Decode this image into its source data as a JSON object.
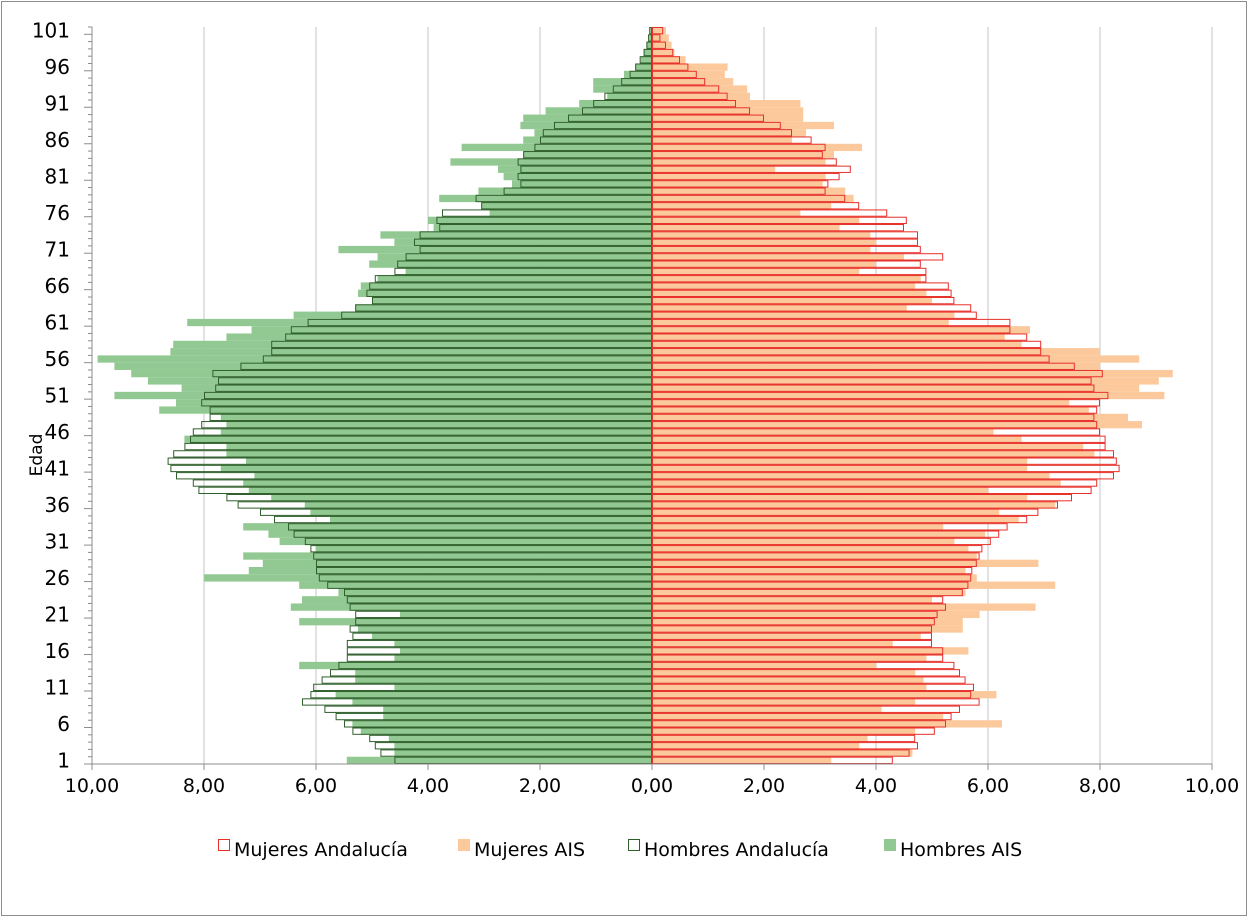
{
  "chart_data": {
    "type": "bar",
    "orientation": "horizontal-population-pyramid",
    "ylabel": "Edad",
    "xlabel": "",
    "xlim": [
      -10,
      10
    ],
    "x_tick_labels": [
      "10,00",
      "8,00",
      "6,00",
      "4,00",
      "2,00",
      "0,00",
      "2,00",
      "4,00",
      "6,00",
      "8,00",
      "10,00"
    ],
    "y_tick_labels": [
      "1",
      "6",
      "11",
      "16",
      "21",
      "26",
      "31",
      "36",
      "41",
      "46",
      "51",
      "56",
      "61",
      "66",
      "71",
      "76",
      "81",
      "86",
      "91",
      "96",
      "101"
    ],
    "ages": [
      1,
      2,
      3,
      4,
      5,
      6,
      7,
      8,
      9,
      10,
      11,
      12,
      13,
      14,
      15,
      16,
      17,
      18,
      19,
      20,
      21,
      22,
      23,
      24,
      25,
      26,
      27,
      28,
      29,
      30,
      31,
      32,
      33,
      34,
      35,
      36,
      37,
      38,
      39,
      40,
      41,
      42,
      43,
      44,
      45,
      46,
      47,
      48,
      49,
      50,
      51,
      52,
      53,
      54,
      55,
      56,
      57,
      58,
      59,
      60,
      61,
      62,
      63,
      64,
      65,
      66,
      67,
      68,
      69,
      70,
      71,
      72,
      73,
      74,
      75,
      76,
      77,
      78,
      79,
      80,
      81,
      82,
      83,
      84,
      85,
      86,
      87,
      88,
      89,
      90,
      91,
      92,
      93,
      94,
      95,
      96,
      97,
      98,
      99,
      100,
      101
    ],
    "legend_position": "bottom",
    "grid": "vertical",
    "series": [
      {
        "name": "Mujeres Andalucía",
        "style": "outline",
        "color": "#e8302a",
        "side": "right",
        "values": [
          4.3,
          4.6,
          4.75,
          4.7,
          5.05,
          5.25,
          5.35,
          5.5,
          5.85,
          5.7,
          5.75,
          5.6,
          5.5,
          5.4,
          5.2,
          5.2,
          5.0,
          5.0,
          5.0,
          5.05,
          5.1,
          5.25,
          5.2,
          5.55,
          5.65,
          5.7,
          5.72,
          5.8,
          5.85,
          5.9,
          6.05,
          6.2,
          6.35,
          6.7,
          6.9,
          7.25,
          7.5,
          7.85,
          7.95,
          8.25,
          8.35,
          8.3,
          8.25,
          8.1,
          8.1,
          8.0,
          7.95,
          7.9,
          7.95,
          8.0,
          8.15,
          7.9,
          7.85,
          8.05,
          7.55,
          7.1,
          6.95,
          6.95,
          6.7,
          6.4,
          6.4,
          5.8,
          5.7,
          5.4,
          5.35,
          5.3,
          4.9,
          4.9,
          4.8,
          5.2,
          4.8,
          4.75,
          4.75,
          4.5,
          4.55,
          4.2,
          3.7,
          3.45,
          3.1,
          3.15,
          3.35,
          3.55,
          3.3,
          3.05,
          3.1,
          2.85,
          2.5,
          2.3,
          2.0,
          1.75,
          1.5,
          1.35,
          1.2,
          0.95,
          0.8,
          0.65,
          0.5,
          0.38,
          0.25,
          0.15,
          0.2
        ]
      },
      {
        "name": "Mujeres AIS",
        "style": "filled",
        "color": "#fcc99c",
        "side": "right",
        "values": [
          3.2,
          4.65,
          3.7,
          3.85,
          4.7,
          6.25,
          5.2,
          4.1,
          4.7,
          6.15,
          4.9,
          4.85,
          4.7,
          4.0,
          4.9,
          5.65,
          4.3,
          4.8,
          5.55,
          5.55,
          5.85,
          6.85,
          5.0,
          5.6,
          7.2,
          5.8,
          5.6,
          6.9,
          5.8,
          5.65,
          5.4,
          5.95,
          5.2,
          6.55,
          6.2,
          7.2,
          6.7,
          6.0,
          7.3,
          7.1,
          6.7,
          6.7,
          7.9,
          7.7,
          6.6,
          6.1,
          8.75,
          8.5,
          7.8,
          7.45,
          9.15,
          8.7,
          9.05,
          9.3,
          8.0,
          8.7,
          8.0,
          6.6,
          6.3,
          6.75,
          5.3,
          5.4,
          4.55,
          5.0,
          4.9,
          4.7,
          4.8,
          3.7,
          4.0,
          4.5,
          3.9,
          4.0,
          3.9,
          3.35,
          3.7,
          2.65,
          3.2,
          3.6,
          3.45,
          3.05,
          3.1,
          2.2,
          3.1,
          3.25,
          3.75,
          2.5,
          2.75,
          3.25,
          2.7,
          2.7,
          2.65,
          1.75,
          1.7,
          1.45,
          1.3,
          1.35,
          0.6,
          0.4,
          0.35,
          0.3,
          0.25
        ]
      },
      {
        "name": "Hombres Andalucía",
        "style": "outline",
        "color": "#2f5f2b",
        "side": "left",
        "values": [
          4.6,
          4.85,
          4.95,
          5.05,
          5.35,
          5.5,
          5.65,
          5.85,
          6.25,
          6.1,
          6.05,
          5.9,
          5.75,
          5.6,
          5.45,
          5.45,
          5.45,
          5.35,
          5.4,
          5.3,
          5.3,
          5.4,
          5.45,
          5.5,
          5.8,
          5.95,
          6.0,
          6.0,
          6.05,
          6.1,
          6.2,
          6.4,
          6.5,
          6.75,
          7.0,
          7.4,
          7.6,
          8.1,
          8.2,
          8.5,
          8.6,
          8.65,
          8.55,
          8.35,
          8.25,
          8.2,
          8.05,
          7.9,
          7.9,
          8.05,
          8.0,
          7.8,
          7.75,
          7.85,
          7.35,
          6.95,
          6.8,
          6.8,
          6.55,
          6.45,
          6.15,
          5.55,
          5.3,
          5.0,
          5.1,
          5.05,
          4.95,
          4.6,
          4.55,
          4.4,
          4.15,
          4.25,
          4.15,
          3.8,
          3.85,
          3.75,
          3.05,
          3.15,
          2.65,
          2.35,
          2.4,
          2.35,
          2.4,
          2.3,
          2.1,
          2.0,
          1.95,
          1.75,
          1.5,
          1.25,
          1.05,
          0.85,
          0.7,
          0.55,
          0.4,
          0.3,
          0.22,
          0.15,
          0.1,
          0.07,
          0.05
        ]
      },
      {
        "name": "Hombres AIS",
        "style": "filled",
        "color": "#92c992",
        "side": "left",
        "values": [
          5.45,
          4.6,
          4.6,
          4.7,
          5.2,
          5.35,
          4.8,
          4.8,
          5.35,
          5.65,
          4.6,
          5.3,
          5.3,
          6.3,
          4.6,
          4.5,
          4.6,
          5.0,
          5.25,
          6.3,
          4.5,
          6.45,
          6.25,
          5.6,
          6.3,
          8.0,
          7.2,
          6.95,
          7.3,
          6.0,
          6.65,
          6.85,
          7.3,
          5.75,
          6.1,
          6.2,
          6.8,
          7.2,
          7.3,
          7.1,
          7.7,
          7.25,
          7.6,
          7.6,
          8.35,
          7.7,
          7.6,
          7.7,
          8.8,
          8.5,
          9.6,
          8.4,
          9.0,
          9.3,
          9.6,
          9.9,
          8.6,
          8.55,
          7.6,
          7.15,
          8.3,
          6.4,
          5.3,
          5.0,
          5.25,
          5.2,
          4.9,
          4.4,
          5.05,
          4.9,
          5.6,
          4.6,
          4.85,
          3.9,
          4.0,
          2.9,
          3.05,
          3.8,
          3.1,
          2.5,
          2.65,
          2.75,
          3.6,
          2.3,
          3.4,
          2.3,
          2.1,
          2.35,
          2.3,
          1.9,
          1.3,
          0.8,
          1.05,
          1.05,
          0.5,
          0.3,
          0.2,
          0.15,
          0.1,
          0.05,
          0.03
        ]
      }
    ]
  }
}
